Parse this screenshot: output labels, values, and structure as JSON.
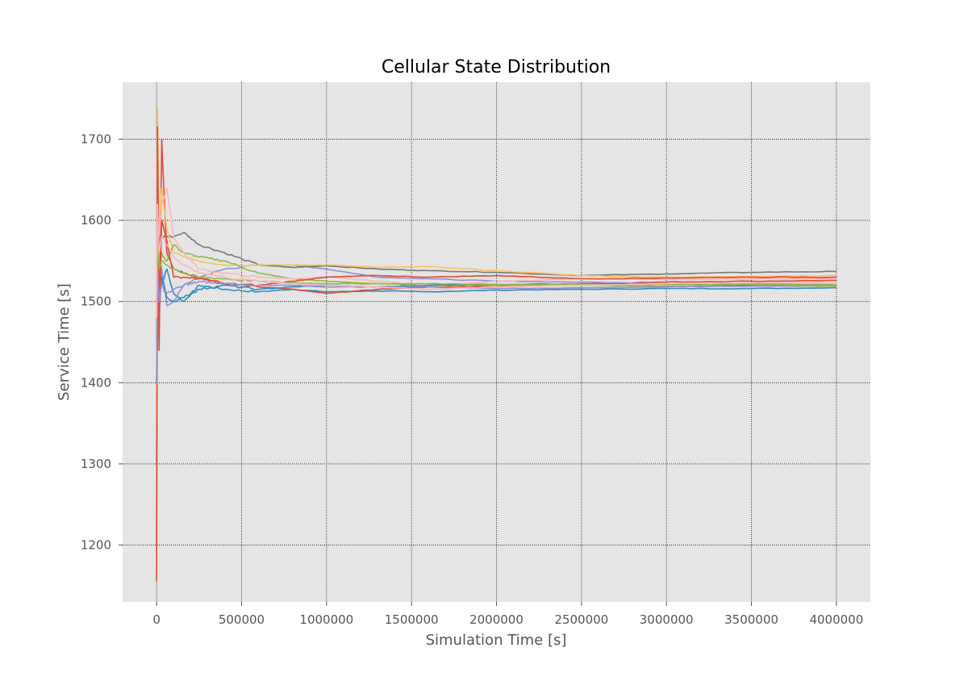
{
  "chart_data": {
    "type": "line",
    "title": "Cellular State Distribution",
    "xlabel": "Simulation Time [s]",
    "ylabel": "Service Time [s]",
    "xlim": [
      -200000,
      4200000
    ],
    "ylim": [
      1130,
      1770
    ],
    "x_ticks": [
      0,
      500000,
      1000000,
      1500000,
      2000000,
      2500000,
      3000000,
      3500000,
      4000000
    ],
    "x_tick_labels": [
      "0",
      "500000",
      "1000000",
      "1500000",
      "2000000",
      "2500000",
      "3000000",
      "3500000",
      "4000000"
    ],
    "y_ticks": [
      1200,
      1300,
      1400,
      1500,
      1600,
      1700
    ],
    "y_tick_labels": [
      "1200",
      "1300",
      "1400",
      "1500",
      "1600",
      "1700"
    ],
    "grid": true,
    "legend": "none",
    "colors": {
      "plot_background": "#e5e5e5",
      "grid": "#000000",
      "series_palette": [
        "#348ABD",
        "#E24A33",
        "#988ED5",
        "#777777",
        "#FBC15E",
        "#8EBA42",
        "#FFB5B8"
      ]
    },
    "series": [
      {
        "color": "#348ABD",
        "x": [
          0,
          5000,
          15000,
          30000,
          60000,
          100000,
          160000,
          250000,
          400000,
          600000,
          800000,
          1000000,
          1300000,
          1600000,
          2000000,
          2500000,
          3000000,
          3500000,
          4000000
        ],
        "y": [
          1500,
          1440,
          1600,
          1520,
          1540,
          1510,
          1500,
          1520,
          1515,
          1512,
          1515,
          1512,
          1513,
          1512,
          1514,
          1515,
          1516,
          1516,
          1517
        ]
      },
      {
        "color": "#E24A33",
        "x": [
          0,
          5000,
          15000,
          30000,
          60000,
          100000,
          160000,
          250000,
          400000,
          600000,
          800000,
          1000000,
          1300000,
          1600000,
          2000000,
          2500000,
          3000000,
          3500000,
          4000000
        ],
        "y": [
          1155,
          1650,
          1440,
          1700,
          1560,
          1540,
          1535,
          1530,
          1522,
          1518,
          1515,
          1510,
          1515,
          1518,
          1518,
          1522,
          1524,
          1525,
          1526
        ]
      },
      {
        "color": "#988ED5",
        "x": [
          0,
          5000,
          15000,
          30000,
          60000,
          100000,
          160000,
          250000,
          400000,
          600000,
          800000,
          1000000,
          1300000,
          1600000,
          2000000,
          2500000,
          3000000,
          3500000,
          4000000
        ],
        "y": [
          1300,
          1600,
          1480,
          1540,
          1495,
          1500,
          1520,
          1530,
          1540,
          1545,
          1545,
          1540,
          1530,
          1528,
          1525,
          1524,
          1522,
          1522,
          1521
        ]
      },
      {
        "color": "#777777",
        "x": [
          0,
          5000,
          15000,
          30000,
          60000,
          100000,
          160000,
          250000,
          400000,
          600000,
          800000,
          1000000,
          1300000,
          1600000,
          2000000,
          2500000,
          3000000,
          3500000,
          4000000
        ],
        "y": [
          1400,
          1620,
          1560,
          1580,
          1580,
          1580,
          1585,
          1570,
          1560,
          1545,
          1542,
          1544,
          1540,
          1538,
          1536,
          1532,
          1534,
          1536,
          1537
        ]
      },
      {
        "color": "#FBC15E",
        "x": [
          0,
          5000,
          15000,
          30000,
          60000,
          100000,
          160000,
          250000,
          400000,
          600000,
          800000,
          1000000,
          1300000,
          1600000,
          2000000,
          2500000,
          3000000,
          3500000,
          4000000
        ],
        "y": [
          1350,
          1740,
          1600,
          1640,
          1590,
          1560,
          1555,
          1550,
          1545,
          1545,
          1545,
          1545,
          1542,
          1543,
          1538,
          1532,
          1530,
          1531,
          1532
        ]
      },
      {
        "color": "#8EBA42",
        "x": [
          0,
          5000,
          15000,
          30000,
          60000,
          100000,
          160000,
          250000,
          400000,
          600000,
          800000,
          1000000,
          1300000,
          1600000,
          2000000,
          2500000,
          3000000,
          3500000,
          4000000
        ],
        "y": [
          1450,
          1560,
          1530,
          1560,
          1550,
          1570,
          1560,
          1555,
          1550,
          1535,
          1528,
          1525,
          1522,
          1520,
          1520,
          1520,
          1519,
          1519,
          1519
        ]
      },
      {
        "color": "#FFB5B8",
        "x": [
          0,
          5000,
          15000,
          30000,
          60000,
          100000,
          160000,
          250000,
          400000,
          600000,
          800000,
          1000000,
          1300000,
          1600000,
          2000000,
          2500000,
          3000000,
          3500000,
          4000000
        ],
        "y": [
          1500,
          1700,
          1580,
          1620,
          1640,
          1580,
          1560,
          1540,
          1535,
          1530,
          1528,
          1530,
          1525,
          1520,
          1525,
          1528,
          1527,
          1528,
          1528
        ]
      },
      {
        "color": "#348ABD",
        "x": [
          0,
          5000,
          15000,
          30000,
          60000,
          100000,
          160000,
          250000,
          400000,
          600000,
          800000,
          1000000,
          1300000,
          1600000,
          2000000,
          2500000,
          3000000,
          3500000,
          4000000
        ],
        "y": [
          1500,
          1560,
          1520,
          1530,
          1505,
          1500,
          1505,
          1515,
          1520,
          1515,
          1518,
          1520,
          1518,
          1520,
          1521,
          1522,
          1521,
          1520,
          1520
        ]
      },
      {
        "color": "#E24A33",
        "x": [
          0,
          5000,
          15000,
          30000,
          60000,
          100000,
          160000,
          250000,
          400000,
          600000,
          800000,
          1000000,
          1300000,
          1600000,
          2000000,
          2500000,
          3000000,
          3500000,
          4000000
        ],
        "y": [
          1200,
          1715,
          1480,
          1600,
          1575,
          1530,
          1530,
          1528,
          1522,
          1520,
          1525,
          1530,
          1532,
          1530,
          1532,
          1528,
          1529,
          1530,
          1530
        ]
      },
      {
        "color": "#988ED5",
        "x": [
          0,
          5000,
          15000,
          30000,
          60000,
          100000,
          160000,
          250000,
          400000,
          600000,
          800000,
          1000000,
          1300000,
          1600000,
          2000000,
          2500000,
          3000000,
          3500000,
          4000000
        ],
        "y": [
          1400,
          1540,
          1500,
          1520,
          1510,
          1515,
          1520,
          1525,
          1522,
          1520,
          1520,
          1518,
          1518,
          1518,
          1516,
          1517,
          1518,
          1519,
          1520
        ]
      },
      {
        "color": "#8EBA42",
        "x": [
          0,
          5000,
          15000,
          30000,
          60000,
          100000,
          160000,
          250000,
          400000,
          600000,
          800000,
          1000000,
          1300000,
          1600000,
          2000000,
          2500000,
          3000000,
          3500000,
          4000000
        ],
        "y": [
          1480,
          1590,
          1540,
          1550,
          1545,
          1540,
          1535,
          1530,
          1528,
          1525,
          1523,
          1522,
          1522,
          1522,
          1521,
          1521,
          1521,
          1521,
          1521
        ]
      },
      {
        "color": "#FFB5B8",
        "x": [
          0,
          5000,
          15000,
          30000,
          60000,
          100000,
          160000,
          250000,
          400000,
          600000,
          800000,
          1000000,
          1300000,
          1600000,
          2000000,
          2500000,
          3000000,
          3500000,
          4000000
        ],
        "y": [
          1480,
          1620,
          1560,
          1580,
          1570,
          1555,
          1545,
          1535,
          1530,
          1525,
          1522,
          1520,
          1518,
          1515,
          1518,
          1520,
          1522,
          1523,
          1524
        ]
      }
    ]
  }
}
